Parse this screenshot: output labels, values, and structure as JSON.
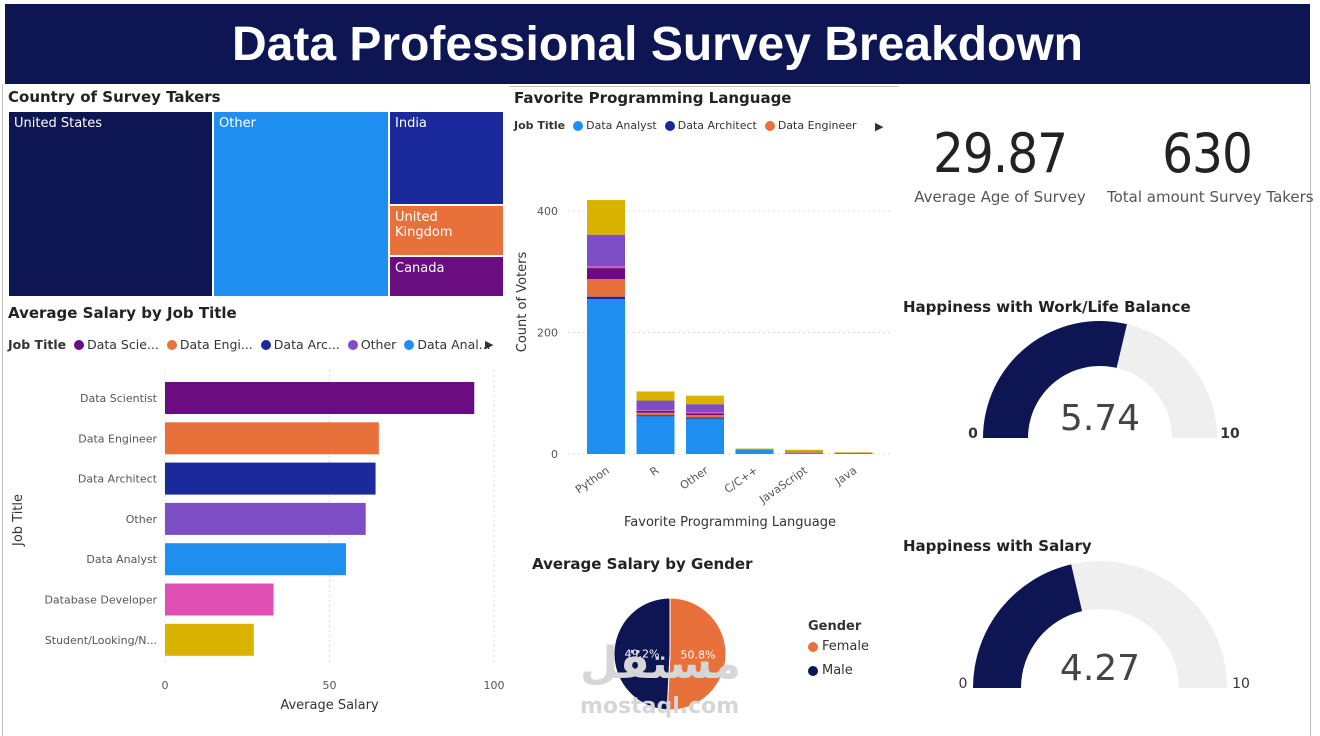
{
  "title": "Data Professional Survey Breakdown",
  "colors": {
    "navy": "#0d1552",
    "data_scientist": "#6a0d80",
    "data_engineer": "#e8703a",
    "data_architect": "#1a2a9c",
    "other": "#7c4dc4",
    "data_analyst": "#1e8ff0",
    "database_developer": "#e04fb4",
    "student": "#d9b300",
    "gauge_fill": "#0d1552",
    "gauge_track": "#efefef"
  },
  "country": {
    "title": "Country of Survey Takers",
    "cells": [
      {
        "label": "United States",
        "color": "#0d1552"
      },
      {
        "label": "Other",
        "color": "#1e8ff0"
      },
      {
        "label": "India",
        "color": "#1a2a9c"
      },
      {
        "label": "United Kingdom",
        "color": "#e8703a"
      },
      {
        "label": "Canada",
        "color": "#6a0d80"
      }
    ]
  },
  "salary_by_job": {
    "title": "Average Salary by Job Title",
    "legend_label": "Job Title",
    "legend": [
      {
        "label": "Data Scie...",
        "color": "#6a0d80"
      },
      {
        "label": "Data Engi...",
        "color": "#e8703a"
      },
      {
        "label": "Data Arc...",
        "color": "#1a2a9c"
      },
      {
        "label": "Other",
        "color": "#7c4dc4"
      },
      {
        "label": "Data Anal...",
        "color": "#1e8ff0"
      }
    ]
  },
  "language": {
    "title": "Favorite Programming Language",
    "legend_label": "Job Title",
    "legend": [
      {
        "label": "Data Analyst",
        "color": "#1e8ff0"
      },
      {
        "label": "Data Architect",
        "color": "#1a2a9c"
      },
      {
        "label": "Data Engineer",
        "color": "#e8703a"
      }
    ]
  },
  "kpis": {
    "avg_age_value": "29.87",
    "avg_age_label": "Average Age of Survey",
    "total_value": "630",
    "total_label": "Total amount Survey Takers"
  },
  "gauges": {
    "work_life": {
      "title": "Happiness with Work/Life Balance",
      "value": 5.74,
      "value_text": "5.74",
      "min": "0",
      "max": "10"
    },
    "salary": {
      "title": "Happiness with Salary",
      "value": 4.27,
      "value_text": "4.27",
      "min": "0",
      "max": "10"
    }
  },
  "gender": {
    "title": "Average Salary by Gender",
    "legend_title": "Gender",
    "items": [
      {
        "label": "Female",
        "pct_text": "50.8%",
        "value": 50.8,
        "color": "#e8703a"
      },
      {
        "label": "Male",
        "pct_text": "49.2%",
        "value": 49.2,
        "color": "#0d1552"
      }
    ]
  },
  "watermark": {
    "arabic": "مستقل",
    "latin": "mostaql.com"
  },
  "chart_data": [
    {
      "type": "bar",
      "orientation": "horizontal",
      "title": "Average Salary by Job Title",
      "xlabel": "Average Salary",
      "ylabel": "Job Title",
      "xlim": [
        0,
        100
      ],
      "xticks": [
        "0",
        "50",
        "100"
      ],
      "categories": [
        "Data Scientist",
        "Data Engineer",
        "Data Architect",
        "Other",
        "Data Analyst",
        "Database Developer",
        "Student/Looking/N..."
      ],
      "values": [
        94,
        65,
        64,
        61,
        55,
        33,
        27
      ],
      "colors": [
        "#6a0d80",
        "#e8703a",
        "#1a2a9c",
        "#7c4dc4",
        "#1e8ff0",
        "#e04fb4",
        "#d9b300"
      ],
      "grid": true
    },
    {
      "type": "bar",
      "stacked": true,
      "title": "Favorite Programming Language",
      "xlabel": "Favorite Programming Language",
      "ylabel": "Count of Voters",
      "ylim": [
        0,
        450
      ],
      "yticks": [
        "0",
        "200",
        "400"
      ],
      "categories": [
        "Python",
        "R",
        "Other",
        "C/C++",
        "JavaScript",
        "Java"
      ],
      "series": [
        {
          "name": "Data Analyst",
          "color": "#1e8ff0",
          "values": [
            255,
            62,
            58,
            7,
            2,
            1
          ]
        },
        {
          "name": "Data Architect",
          "color": "#1a2a9c",
          "values": [
            4,
            2,
            2,
            0,
            0,
            0
          ]
        },
        {
          "name": "Data Engineer",
          "color": "#e8703a",
          "values": [
            29,
            4,
            4,
            0,
            1,
            0
          ]
        },
        {
          "color": "#6a0d80",
          "values": [
            18,
            3,
            3,
            0,
            0,
            0
          ]
        },
        {
          "color": "#e04fb4",
          "values": [
            3,
            1,
            2,
            0,
            0,
            0
          ]
        },
        {
          "color": "#7c4dc4",
          "values": [
            52,
            16,
            13,
            1,
            1,
            1
          ]
        },
        {
          "color": "#d9b300",
          "values": [
            57,
            15,
            14,
            1,
            3,
            1
          ]
        }
      ],
      "grid": true
    },
    {
      "type": "pie",
      "title": "Average Salary by Gender",
      "categories": [
        "Female",
        "Male"
      ],
      "values": [
        50.8,
        49.2
      ],
      "colors": [
        "#e8703a",
        "#0d1552"
      ],
      "legend": "right"
    }
  ]
}
